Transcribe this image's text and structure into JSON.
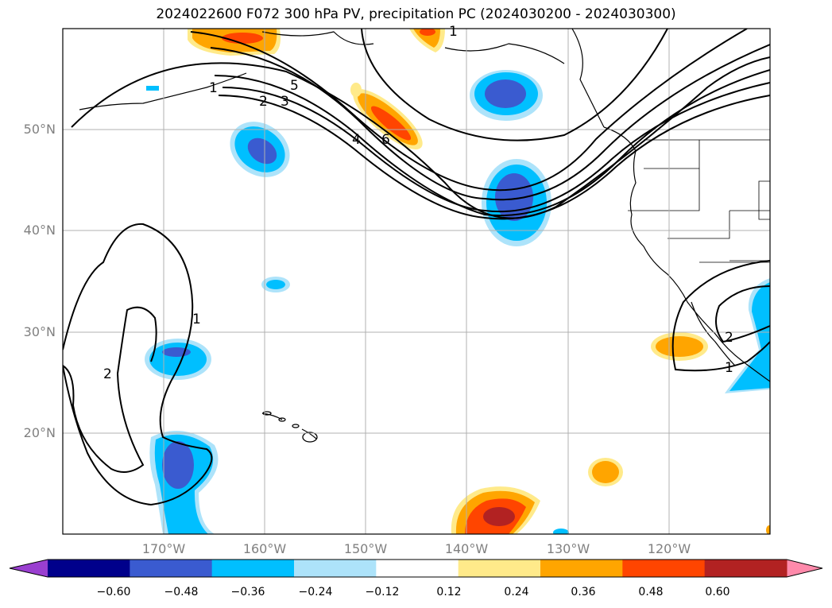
{
  "title": "2024022600 F072 300 hPa PV, precipitation PC (2024030200 - 2024030300)",
  "lat_labels": [
    "50°N",
    "40°N",
    "30°N",
    "20°N"
  ],
  "lon_labels": [
    "170°W",
    "160°W",
    "150°W",
    "140°W",
    "130°W",
    "120°W"
  ],
  "contour_labels": [
    "1",
    "2",
    "3",
    "4",
    "5",
    "6",
    "1",
    "2",
    "1",
    "1",
    "2"
  ],
  "colorbar": {
    "ticks": [
      "−0.60",
      "−0.48",
      "−0.36",
      "−0.24",
      "−0.12",
      "0.12",
      "0.24",
      "0.36",
      "0.48",
      "0.60"
    ],
    "colors": [
      "#9a3fd0",
      "#00008b",
      "#3a5bd0",
      "#00bfff",
      "#ade3fa",
      "#ffffff",
      "#ffea8a",
      "#ffa500",
      "#ff4500",
      "#b22222",
      "#ff8aab"
    ]
  },
  "colors": {
    "neg_strong": "#3a5bd0",
    "neg_mid": "#00bfff",
    "neg_weak": "#ade3fa",
    "pos_weak": "#ffea8a",
    "pos_mid": "#ffa500",
    "pos_strong": "#ff4500",
    "pos_vstrong": "#b22222",
    "grid": "#b0b0b0",
    "contour": "#000000"
  }
}
